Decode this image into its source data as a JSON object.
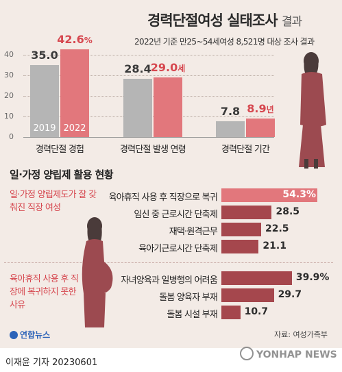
{
  "header": {
    "title": "경력단절여성 실태조사",
    "title_suffix": "결과",
    "subtitle": "2022년 기준 만25~54세여성 8,521명 대상 조사 결과"
  },
  "chart_data": [
    {
      "type": "bar",
      "categories": [
        "경력단절 경험",
        "경력단절 발생 연령",
        "경력단절 기간"
      ],
      "series": [
        {
          "name": "2019",
          "values": [
            35.0,
            28.4,
            7.8
          ]
        },
        {
          "name": "2022",
          "values": [
            42.6,
            29.0,
            8.9
          ]
        }
      ],
      "value_labels": {
        "2019": [
          "35.0",
          "28.4",
          "7.8"
        ],
        "2022": [
          "42.6",
          "29.0",
          "8.9"
        ]
      },
      "units": [
        "%",
        "세",
        "년"
      ],
      "yticks": [
        "40",
        "30",
        "20",
        "10",
        "0"
      ],
      "ylim": [
        0,
        45
      ],
      "colors": {
        "2019": "#b5b5b5",
        "2022": "#e2777c"
      }
    },
    {
      "type": "bar",
      "orientation": "horizontal",
      "title": "일·가정 양립제 활용 현황",
      "groups": [
        {
          "label": "일·가정 양립제도가 잘 갖춰진 직장 여성",
          "categories": [
            "육아휴직 사용 후 직장으로 복귀",
            "임신 중 근로시간 단축제",
            "재택·원격근무",
            "육아기근로시간 단축제"
          ],
          "values": [
            54.3,
            28.5,
            22.5,
            21.1
          ],
          "value_labels": [
            "54.3%",
            "28.5",
            "22.5",
            "21.1"
          ]
        },
        {
          "label": "육아휴직 사용 후 직장에 복귀하지 못한 사유",
          "categories": [
            "자녀양육과 일병행의 어려움",
            "돌봄 양육자 부재",
            "돌봄 시설 부재"
          ],
          "values": [
            39.9,
            29.7,
            10.7
          ],
          "value_labels": [
            "39.9%",
            "29.7",
            "10.7"
          ]
        }
      ],
      "colors": {
        "highlight": "#e2777c",
        "normal": "#a5474d"
      }
    }
  ],
  "footer": {
    "source": "자료: 여성가족부",
    "logo": "연합뉴스",
    "byline": "이재윤 기자  20230601",
    "watermark": "YONHAP NEWS"
  }
}
